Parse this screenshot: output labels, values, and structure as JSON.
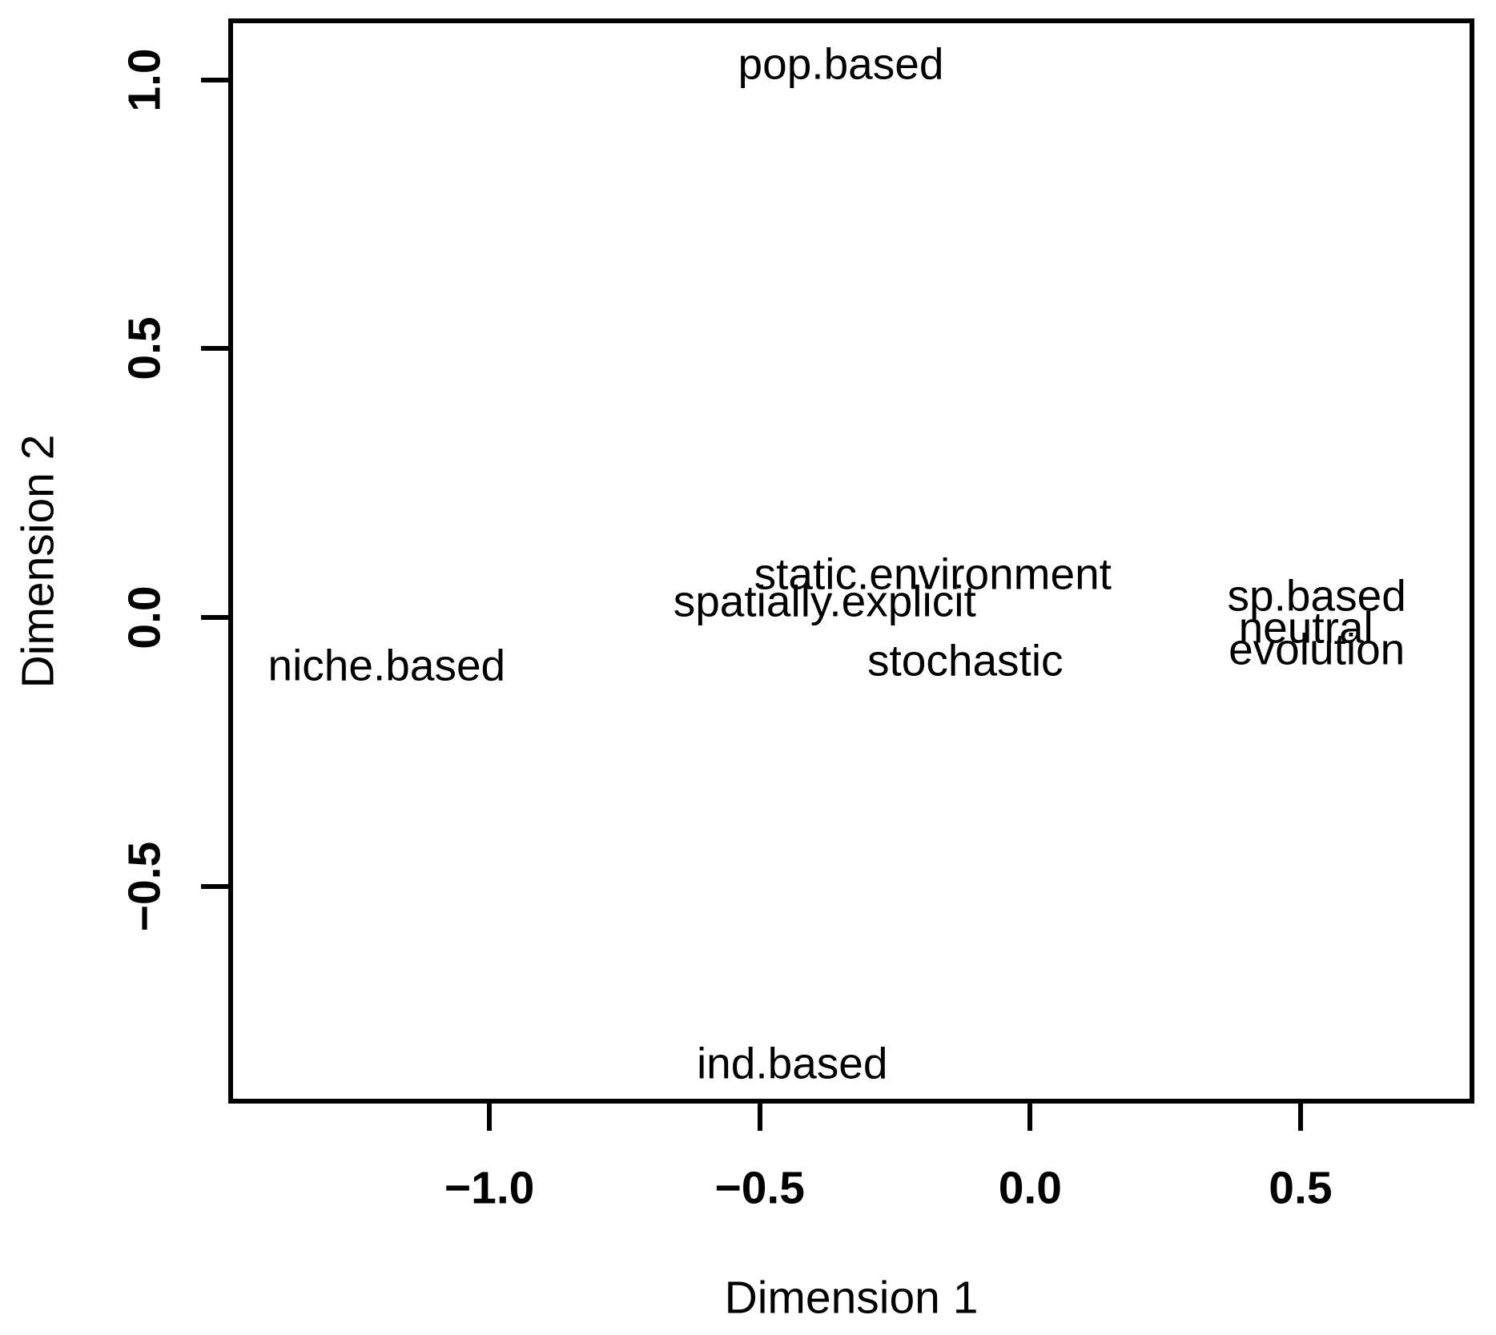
{
  "chart_data": {
    "type": "scatter",
    "title": "",
    "xlabel": "Dimension 1",
    "ylabel": "Dimension 2",
    "xlim": [
      -1.48,
      0.82
    ],
    "ylim": [
      -0.9,
      1.11
    ],
    "grid": false,
    "legend": "none",
    "point_marker": "text-label-only",
    "axis_color": "#000000",
    "text_color": "#000000",
    "background_color": "#ffffff",
    "x_ticks": [
      -1.0,
      -0.5,
      0.0,
      0.5
    ],
    "x_tick_labels": [
      "−1.0",
      "−0.5",
      "0.0",
      "0.5"
    ],
    "y_ticks": [
      -0.5,
      0.0,
      0.5,
      1.0
    ],
    "y_tick_labels": [
      "−0.5",
      "0.0",
      "0.5",
      "1.0"
    ],
    "points": [
      {
        "label": "pop.based",
        "x": -0.35,
        "y": 1.03
      },
      {
        "label": "niche.based",
        "x": -1.19,
        "y": -0.09
      },
      {
        "label": "static.environment",
        "x": -0.18,
        "y": 0.08
      },
      {
        "label": "spatially.explicit",
        "x": -0.38,
        "y": 0.03
      },
      {
        "label": "stochastic",
        "x": -0.12,
        "y": -0.08
      },
      {
        "label": "sp.based",
        "x": 0.53,
        "y": 0.04
      },
      {
        "label": "neutral",
        "x": 0.51,
        "y": -0.02
      },
      {
        "label": "evolution",
        "x": 0.53,
        "y": -0.06
      },
      {
        "label": "ind.based",
        "x": -0.44,
        "y": -0.83
      }
    ]
  }
}
